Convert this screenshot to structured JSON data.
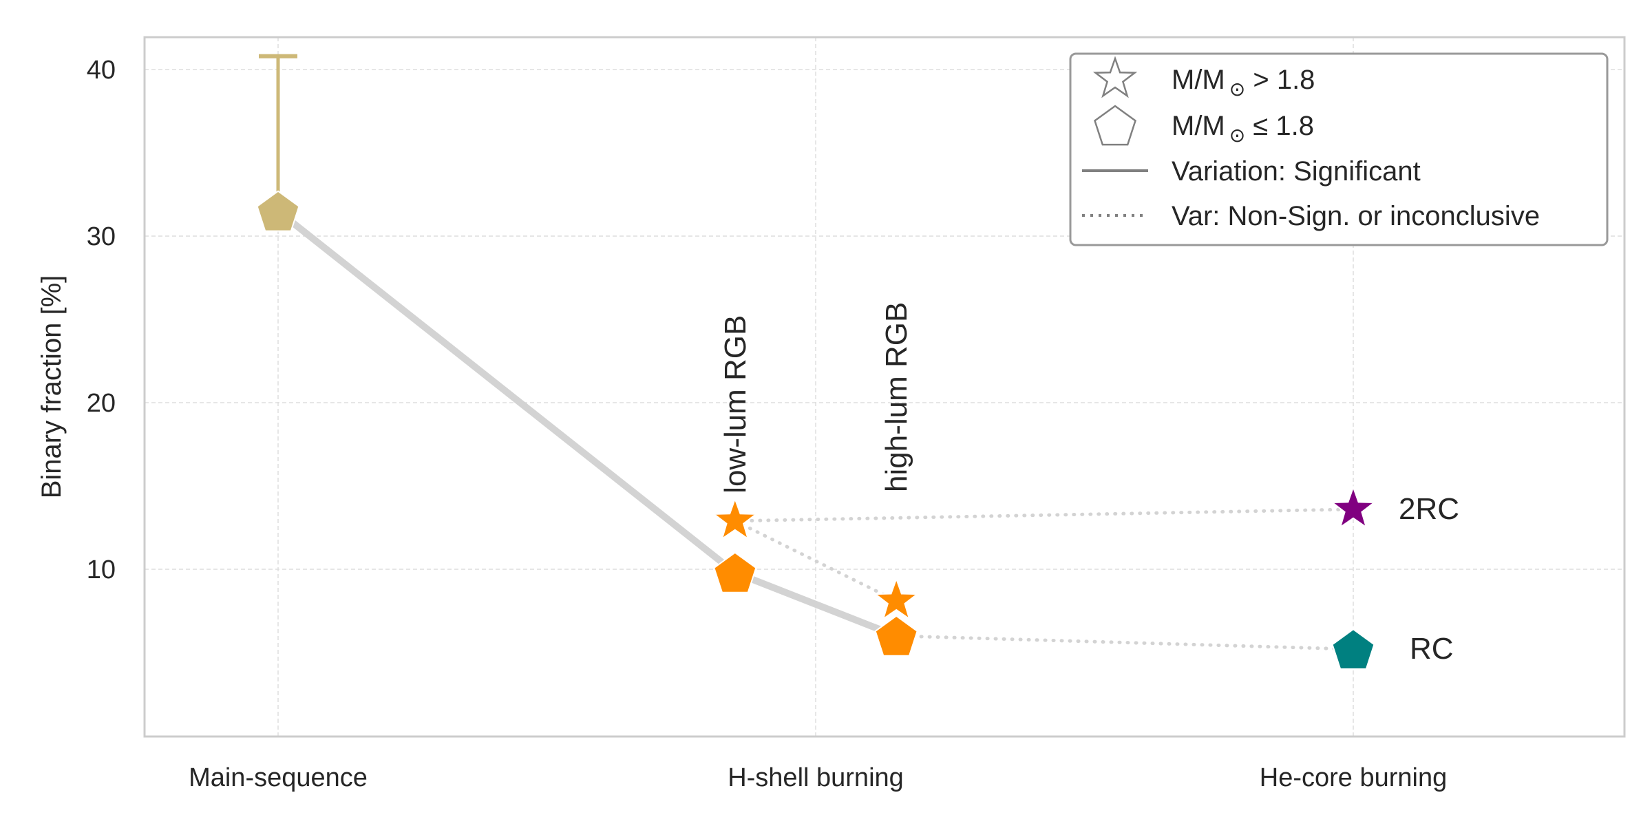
{
  "chart_data": {
    "type": "scatter",
    "title": "",
    "xlabel": "",
    "ylabel": "Binary fraction [%]",
    "categories": [
      "Main-sequence",
      "H-shell burning",
      "He-core burning"
    ],
    "yticks": [
      10,
      20,
      30,
      40
    ],
    "ylim": [
      0,
      42
    ],
    "grid": true,
    "legend_position": "top-right",
    "colors": {
      "main_sequence": "#CDB877",
      "rgb": "#FF8C00",
      "rc2": "#800080",
      "rc": "#008080",
      "connector": "#D3D3D3",
      "legend_marker": "#808080"
    },
    "points": [
      {
        "id": "ms",
        "x": 0,
        "y": 31.5,
        "marker": "pentagon",
        "color": "#CDB877",
        "label": "",
        "error_upper": 40.8
      },
      {
        "id": "lowlum-pent",
        "x": 0.85,
        "y": 9.8,
        "marker": "pentagon",
        "color": "#FF8C00",
        "label": ""
      },
      {
        "id": "lowlum-star",
        "x": 0.85,
        "y": 12.9,
        "marker": "star",
        "color": "#FF8C00",
        "label": "low-lum RGB"
      },
      {
        "id": "highlum-star",
        "x": 1.15,
        "y": 8.1,
        "marker": "star",
        "color": "#FF8C00",
        "label": "high-lum RGB"
      },
      {
        "id": "highlum-pent",
        "x": 1.15,
        "y": 6.0,
        "marker": "pentagon",
        "color": "#FF8C00",
        "label": ""
      },
      {
        "id": "rc2",
        "x": 2.0,
        "y": 13.6,
        "marker": "star",
        "color": "#800080",
        "label": "2RC"
      },
      {
        "id": "rc",
        "x": 2.0,
        "y": 5.2,
        "marker": "pentagon",
        "color": "#008080",
        "label": "RC"
      }
    ],
    "connections": [
      {
        "from": "ms",
        "to": "lowlum-pent",
        "style": "solid"
      },
      {
        "from": "lowlum-pent",
        "to": "highlum-pent",
        "style": "solid"
      },
      {
        "from": "lowlum-star",
        "to": "highlum-star",
        "style": "dotted"
      },
      {
        "from": "lowlum-star",
        "to": "rc2",
        "style": "dotted"
      },
      {
        "from": "highlum-pent",
        "to": "rc",
        "style": "dotted"
      }
    ],
    "legend": [
      {
        "marker": "star",
        "label_base": "M/M",
        "label_sub": "⊙",
        "label_rest": " > 1.8"
      },
      {
        "marker": "pentagon",
        "label_base": "M/M",
        "label_sub": "⊙",
        "label_rest": " ≤ 1.8"
      },
      {
        "marker": "solid-line",
        "label_base": "Variation: Significant",
        "label_sub": "",
        "label_rest": ""
      },
      {
        "marker": "dotted-line",
        "label_base": "Var: Non-Sign. or inconclusive",
        "label_sub": "",
        "label_rest": ""
      }
    ]
  }
}
